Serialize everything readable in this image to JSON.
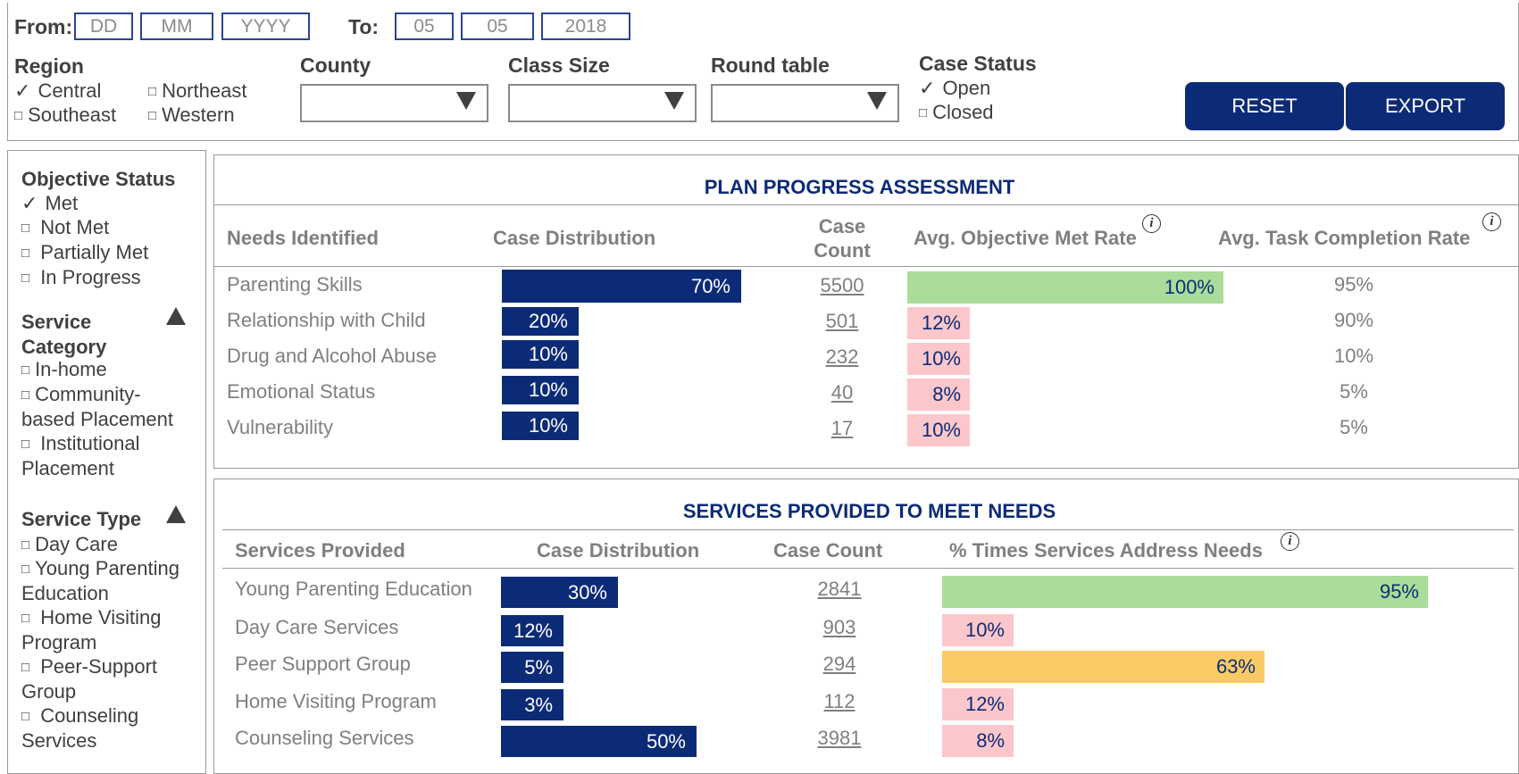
{
  "filters": {
    "from_label": "From",
    "from_placeholders": [
      "DD",
      "MM",
      "YYYY"
    ],
    "to_label": "To",
    "to_values": [
      "05",
      "05",
      "2018"
    ],
    "region": {
      "label": "Region",
      "options": [
        {
          "label": "Central",
          "checked": true
        },
        {
          "label": "Northeast",
          "checked": false
        },
        {
          "label": "Southeast",
          "checked": false
        },
        {
          "label": "Western",
          "checked": false
        }
      ]
    },
    "county_label": "County",
    "class_size_label": "Class Size",
    "round_table_label": "Round table",
    "case_status": {
      "label": "Case Status",
      "options": [
        {
          "label": "Open",
          "checked": true
        },
        {
          "label": "Closed",
          "checked": false
        }
      ]
    },
    "reset_label": "RESET",
    "export_label": "EXPORT"
  },
  "sidebar": {
    "objective_status": {
      "label": "Objective Status",
      "options": [
        {
          "label": "Met",
          "checked": true
        },
        {
          "label": "Not Met",
          "checked": false
        },
        {
          "label": "Partially Met",
          "checked": false
        },
        {
          "label": "In Progress",
          "checked": false
        }
      ]
    },
    "service_category": {
      "label_line1": "Service",
      "label_line2": "Category",
      "options": [
        "In-home",
        "Community-",
        "based Placement",
        "Institutional",
        "Placement"
      ]
    },
    "service_type": {
      "label": "Service Type",
      "options": [
        "Day Care",
        "Young Parenting",
        "Education",
        "Home Visiting",
        "Program",
        "Peer-Support",
        "Group",
        "Counseling",
        "Services"
      ]
    }
  },
  "plan_progress": {
    "title": "PLAN PROGRESS ASSESSMENT",
    "headers": {
      "needs": "Needs Identified",
      "distribution": "Case Distribution",
      "count_line1": "Case",
      "count_line2": "Count",
      "objective_rate": "Avg. Objective Met Rate",
      "task_rate": "Avg. Task Completion Rate"
    },
    "rows": [
      {
        "need": "Parenting Skills",
        "distribution": "70%",
        "dist_value": 70,
        "count": "5500",
        "objective": "100%",
        "objective_value": 100,
        "objective_color": "#a9dd99",
        "task": "95%"
      },
      {
        "need": "Relationship with Child",
        "distribution": "20%",
        "dist_value": 20,
        "count": "501",
        "objective": "12%",
        "objective_value": 12,
        "objective_color": "#fbc7cb",
        "task": "90%"
      },
      {
        "need": "Drug and Alcohol Abuse",
        "distribution": "10%",
        "dist_value": 10,
        "count": "232",
        "objective": "10%",
        "objective_value": 10,
        "objective_color": "#fbc7cb",
        "task": "10%"
      },
      {
        "need": "Emotional Status",
        "distribution": "10%",
        "dist_value": 10,
        "count": "40",
        "objective": "8%",
        "objective_value": 8,
        "objective_color": "#fbc7cb",
        "task": "5%"
      },
      {
        "need": "Vulnerability",
        "distribution": "10%",
        "dist_value": 10,
        "count": "17",
        "objective": "10%",
        "objective_value": 10,
        "objective_color": "#fbc7cb",
        "task": "5%"
      }
    ]
  },
  "services": {
    "title": "SERVICES PROVIDED TO MEET NEEDS",
    "headers": {
      "services": "Services Provided",
      "distribution": "Case Distribution",
      "count": "Case Count",
      "address": "% Times Services Address Needs"
    },
    "rows": [
      {
        "service": "Young Parenting Education",
        "distribution": "30%",
        "dist_value": 30,
        "count": "2841",
        "address": "95%",
        "address_value": 95,
        "address_color": "#a9dd99"
      },
      {
        "service": "Day Care Services",
        "distribution": "12%",
        "dist_value": 12,
        "count": "903",
        "address": "10%",
        "address_value": 10,
        "address_color": "#fbc7cb"
      },
      {
        "service": "Peer Support Group",
        "distribution": "5%",
        "dist_value": 5,
        "count": "294",
        "address": "63%",
        "address_value": 63,
        "address_color": "#fbcb63"
      },
      {
        "service": "Home Visiting Program",
        "distribution": "3%",
        "dist_value": 3,
        "count": "112",
        "address": "12%",
        "address_value": 12,
        "address_color": "#fbc7cb"
      },
      {
        "service": "Counseling Services",
        "distribution": "50%",
        "dist_value": 50,
        "count": "3981",
        "address": "8%",
        "address_value": 8,
        "address_color": "#fbc7cb"
      }
    ]
  },
  "icons": {
    "info": "i",
    "checkmark": "✓",
    "checkbox": "□"
  }
}
